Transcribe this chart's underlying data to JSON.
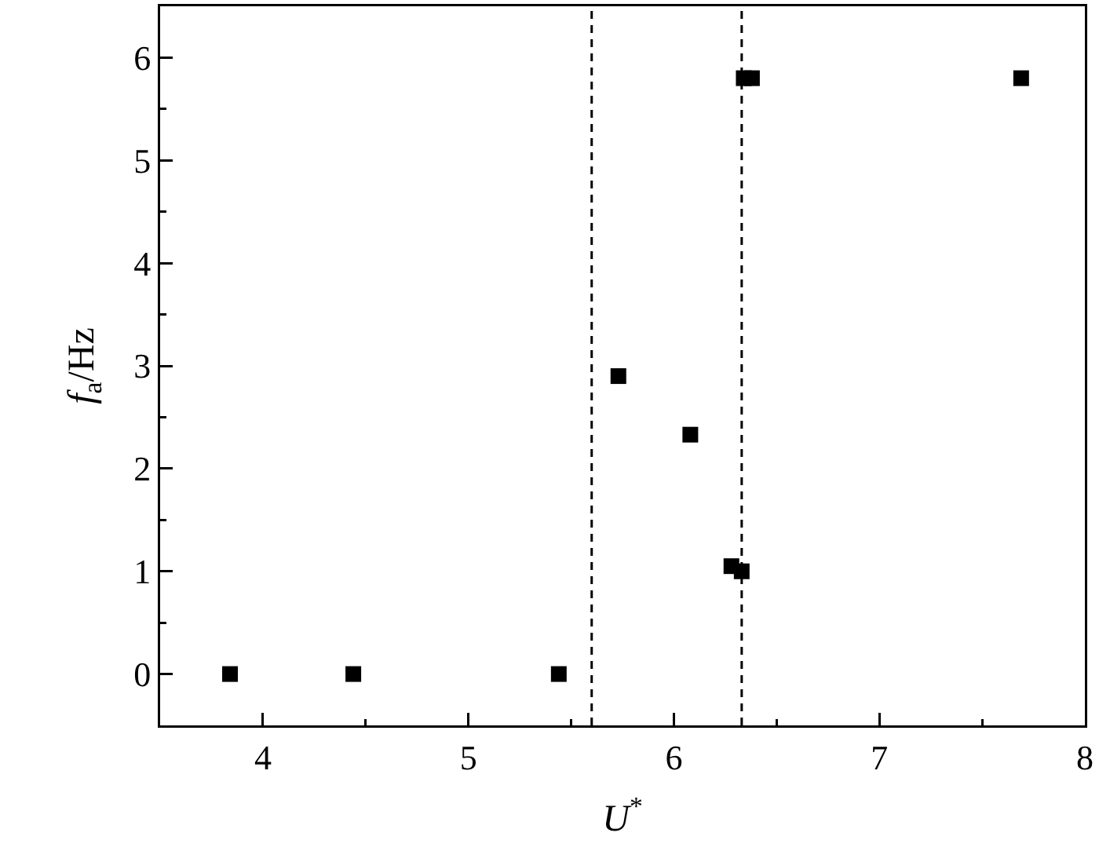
{
  "chart_data": {
    "type": "scatter",
    "xlabel": "U$^{*}$",
    "ylabel": "f$_{a}$/Hz",
    "x": [
      3.84,
      4.44,
      5.44,
      5.73,
      6.08,
      6.28,
      6.33,
      6.34,
      6.38,
      7.69
    ],
    "values": [
      0,
      0,
      0,
      2.9,
      2.33,
      1.05,
      1.0,
      5.8,
      5.8,
      5.8
    ],
    "color": "#000000",
    "marker": "square",
    "xlim": [
      3.5,
      8
    ],
    "ylim": [
      -0.5,
      6.5
    ],
    "xticks": [
      4,
      {
        "value": 4.5,
        "label": null
      },
      5,
      {
        "value": 5.5,
        "label": null
      },
      6,
      {
        "value": 6.5,
        "label": null
      },
      7,
      {
        "value": 7.5,
        "label": null
      },
      8
    ],
    "yticks": [
      0,
      {
        "value": 0.5,
        "label": null
      },
      1,
      {
        "value": 1.5,
        "label": null
      },
      2,
      {
        "value": 2.5,
        "label": null
      },
      3,
      {
        "value": 3.5,
        "label": null
      },
      4,
      {
        "value": 4.5,
        "label": null
      },
      5,
      {
        "value": 5.5,
        "label": null
      },
      6
    ],
    "ref_lines": [
      {
        "axis": "x",
        "value": 5.6,
        "color": "#000000",
        "line_style": "dashed"
      },
      {
        "axis": "x",
        "value": 6.33,
        "color": "#000000",
        "line_style": "dashed"
      }
    ],
    "grid": false
  }
}
